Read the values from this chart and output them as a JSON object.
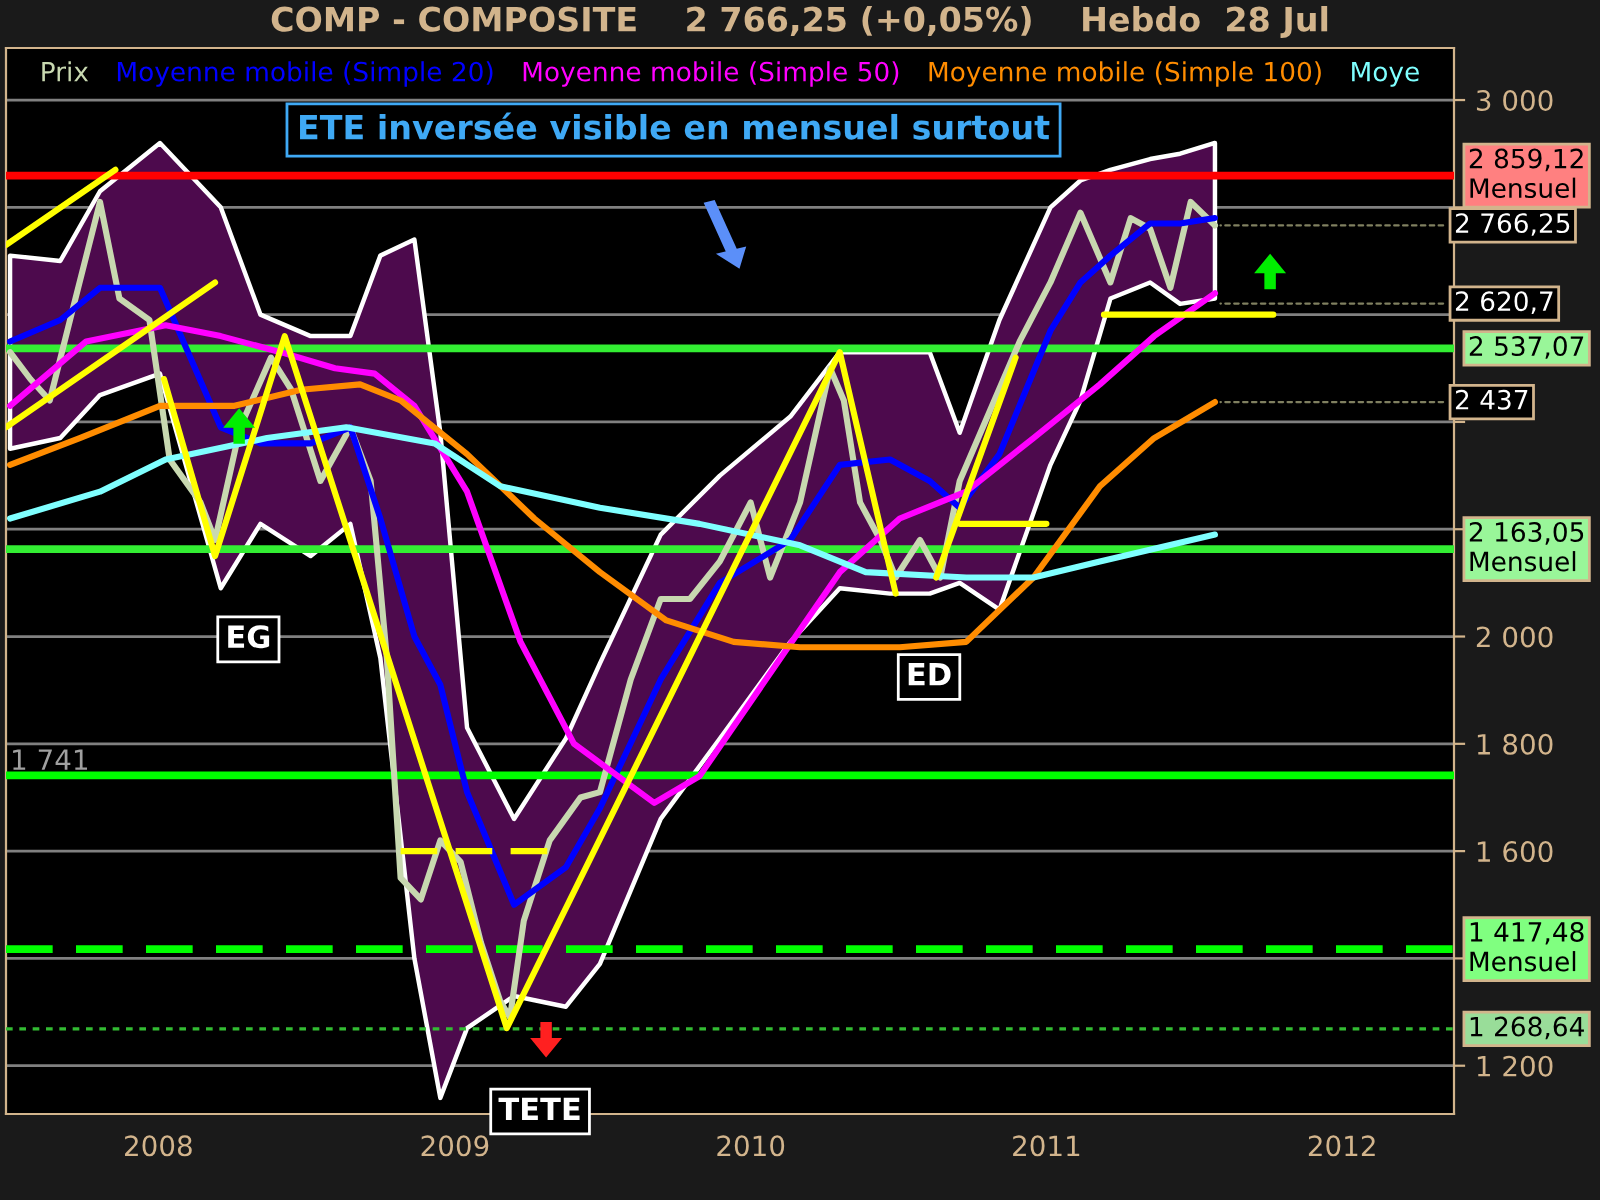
{
  "chart_data": {
    "type": "line",
    "title": "COMP - COMPOSITE    2 766,25 (+0,05%)    Hebdo  28 Jul",
    "xlim": [
      "2007-06-27",
      "2012-05-18"
    ],
    "xticks": [
      "2008",
      "2009",
      "2010",
      "2011",
      "2012"
    ],
    "ylim": [
      1110,
      3097
    ],
    "yticks": [
      {
        "value": 1200,
        "label": "1 200"
      },
      {
        "value": 1400,
        "label": null
      },
      {
        "value": 1600,
        "label": "1 600"
      },
      {
        "value": 1800,
        "label": "1 800"
      },
      {
        "value": 2000,
        "label": "2 000"
      },
      {
        "value": 2200,
        "label": null
      },
      {
        "value": 2400,
        "label": null
      },
      {
        "value": 2600,
        "label": null
      },
      {
        "value": 2800,
        "label": null
      },
      {
        "value": 3000,
        "label": "3 000"
      }
    ],
    "grid": "y",
    "legend": "top",
    "series": [
      {
        "name": "Prix",
        "color": "#c8d8b0",
        "x": [
          "2007-07-02",
          "2007-07-27",
          "2007-08-20",
          "2007-09-14",
          "2007-10-21",
          "2007-11-14",
          "2007-12-21",
          "2008-01-15",
          "2008-02-22",
          "2008-03-11",
          "2008-04-11",
          "2008-05-19",
          "2008-06-13",
          "2008-07-19",
          "2008-08-25",
          "2008-09-19",
          "2008-10-09",
          "2008-10-26",
          "2008-11-20",
          "2008-12-14",
          "2009-01-08",
          "2009-02-02",
          "2009-02-26",
          "2009-03-10",
          "2009-03-27",
          "2009-04-28",
          "2009-06-05",
          "2009-06-29",
          "2009-08-06",
          "2009-09-12",
          "2009-10-18",
          "2009-11-24",
          "2010-01-01",
          "2010-01-25",
          "2010-03-03",
          "2010-04-09",
          "2010-04-26",
          "2010-05-16",
          "2010-06-10",
          "2010-06-29",
          "2010-07-29",
          "2010-08-23",
          "2010-09-16",
          "2010-10-23",
          "2010-11-29",
          "2011-01-06",
          "2011-02-12",
          "2011-03-21",
          "2011-04-15",
          "2011-05-09",
          "2011-06-03",
          "2011-06-28",
          "2011-07-28"
        ],
        "values": [
          2530,
          2480,
          2440,
          2590,
          2810,
          2630,
          2590,
          2330,
          2250,
          2180,
          2390,
          2520,
          2460,
          2290,
          2390,
          2290,
          1960,
          1550,
          1510,
          1620,
          1580,
          1430,
          1320,
          1290,
          1470,
          1620,
          1700,
          1710,
          1920,
          2070,
          2070,
          2140,
          2250,
          2110,
          2250,
          2500,
          2440,
          2250,
          2180,
          2110,
          2180,
          2110,
          2290,
          2420,
          2550,
          2660,
          2790,
          2660,
          2780,
          2760,
          2650,
          2810,
          2766.25
        ]
      },
      {
        "name": "Moyenne mobile (Simple 20)",
        "color": "#0000ff",
        "x": [
          "2007-07-02",
          "2007-09-02",
          "2007-10-21",
          "2008-01-03",
          "2008-03-18",
          "2008-05-06",
          "2008-07-07",
          "2008-08-25",
          "2008-10-01",
          "2008-11-12",
          "2008-12-14",
          "2009-01-16",
          "2009-03-15",
          "2009-05-18",
          "2009-06-29",
          "2009-09-12",
          "2009-11-24",
          "2010-02-19",
          "2010-04-21",
          "2010-06-22",
          "2010-08-10",
          "2010-09-16",
          "2010-11-04",
          "2011-01-06",
          "2011-02-12",
          "2011-03-21",
          "2011-05-09",
          "2011-06-15",
          "2011-07-28"
        ],
        "values": [
          2550,
          2590,
          2650,
          2650,
          2390,
          2360,
          2360,
          2390,
          2220,
          2000,
          1910,
          1710,
          1500,
          1570,
          1680,
          1920,
          2100,
          2180,
          2320,
          2330,
          2290,
          2240,
          2340,
          2570,
          2660,
          2710,
          2770,
          2770,
          2780
        ],
        "upper": [
          2710,
          2700,
          2830,
          2920,
          2800,
          2600,
          2560,
          2560,
          2710,
          2740,
          2380,
          1830,
          1660,
          1810,
          1950,
          2190,
          2300,
          2410,
          2530,
          2530,
          2530,
          2380,
          2590,
          2800,
          2850,
          2870,
          2890,
          2900,
          2920
        ],
        "lower": [
          2350,
          2370,
          2450,
          2490,
          2090,
          2210,
          2150,
          2210,
          1960,
          1400,
          1140,
          1270,
          1330,
          1310,
          1390,
          1660,
          1810,
          1990,
          2090,
          2080,
          2080,
          2100,
          2050,
          2320,
          2440,
          2630,
          2660,
          2620,
          2630
        ]
      },
      {
        "name": "Moyenne mobile (Simple 50)",
        "color": "#ff00ff",
        "x": [
          "2007-07-02",
          "2007-10-04",
          "2008-01-10",
          "2008-03-18",
          "2008-05-31",
          "2008-08-06",
          "2008-09-24",
          "2008-11-12",
          "2009-01-16",
          "2009-03-23",
          "2009-05-28",
          "2009-09-04",
          "2009-10-30",
          "2010-02-07",
          "2010-04-21",
          "2010-07-04",
          "2010-09-24",
          "2010-12-16",
          "2011-03-08",
          "2011-05-14",
          "2011-07-28"
        ],
        "values": [
          2430,
          2550,
          2580,
          2560,
          2530,
          2500,
          2490,
          2430,
          2270,
          1990,
          1800,
          1690,
          1740,
          1960,
          2120,
          2220,
          2270,
          2370,
          2470,
          2560,
          2640
        ]
      },
      {
        "name": "Moyenne mobile (Simple 100)",
        "color": "#ff8c00",
        "x": [
          "2007-07-02",
          "2007-09-26",
          "2008-01-03",
          "2008-04-04",
          "2008-06-25",
          "2008-09-06",
          "2008-10-26",
          "2009-01-16",
          "2009-04-09",
          "2009-06-29",
          "2009-09-19",
          "2009-12-11",
          "2010-03-03",
          "2010-07-04",
          "2010-09-24",
          "2010-12-16",
          "2011-03-08",
          "2011-05-14",
          "2011-07-28"
        ],
        "values": [
          2320,
          2370,
          2430,
          2430,
          2460,
          2470,
          2440,
          2340,
          2220,
          2120,
          2030,
          1990,
          1980,
          1980,
          1990,
          2110,
          2280,
          2370,
          2437
        ]
      },
      {
        "name": "Moye",
        "color": "#7fffff",
        "x": [
          "2007-07-02",
          "2007-10-21",
          "2008-01-10",
          "2008-05-14",
          "2008-08-20",
          "2008-12-07",
          "2009-02-26",
          "2009-06-29",
          "2009-10-30",
          "2010-03-03",
          "2010-05-23",
          "2010-09-24",
          "2010-12-16",
          "2011-03-08",
          "2011-07-28"
        ],
        "values": [
          2220,
          2270,
          2330,
          2370,
          2390,
          2360,
          2280,
          2240,
          2210,
          2170,
          2120,
          2110,
          2110,
          2140,
          2190
        ]
      },
      {
        "color": "#ffff00",
        "x": [
          "2007-06-27",
          "2007-11-09"
        ],
        "values": [
          2730,
          2870
        ]
      },
      {
        "color": "#ffff00",
        "x": [
          "2007-06-27",
          "2008-03-11"
        ],
        "values": [
          2390,
          2660
        ]
      },
      {
        "color": "#ffff00",
        "x": [
          "2008-01-08",
          "2008-03-11",
          "2008-06-05",
          "2009-03-06",
          "2010-04-21",
          "2010-06-29"
        ],
        "values": [
          2480,
          2150,
          2560,
          1270,
          2530,
          2080
        ]
      },
      {
        "color": "#ffff00",
        "x": [
          "2010-08-18",
          "2010-11-24"
        ],
        "values": [
          2110,
          2520
        ]
      },
      {
        "color": "#ffff00",
        "x": [
          "2010-09-16",
          "2011-01-01"
        ],
        "values": [
          2210,
          2210
        ]
      },
      {
        "color": "#ffff00",
        "x": [
          "2011-03-13",
          "2011-10-08"
        ],
        "values": [
          2600,
          2600
        ]
      },
      {
        "color": "#ffff00",
        "line_style": "dashed",
        "x": [
          "2008-10-26",
          "2009-05-04"
        ],
        "values": [
          1600,
          1600
        ]
      }
    ],
    "ref_lines": [
      {
        "axis": "y",
        "value": 2859.12,
        "label": "2 859,12\nMensuel",
        "color": "#ff0000"
      },
      {
        "axis": "y",
        "value": 2537.07,
        "label": "2 537,07",
        "color": "#33ee33"
      },
      {
        "axis": "y",
        "value": 2163.05,
        "label": "2 163,05\nMensuel",
        "color": "#33ee33"
      },
      {
        "axis": "y",
        "value": 1741,
        "color": "#00ff00"
      },
      {
        "axis": "y",
        "value": 1417.48,
        "label": "1 417,48\nMensuel",
        "color": "#00ff00",
        "line_style": "dashed"
      },
      {
        "axis": "y",
        "value": 1268.64,
        "label": "1 268,64",
        "color": "#33bb33",
        "line_style": "dotted"
      }
    ],
    "annotations": [
      "ETE inversée visible en mensuel surtout",
      {
        "text": "EG",
        "x": "2008-03-11",
        "y": 2150
      },
      {
        "text": "TETE",
        "x": "2009-03-06",
        "y": 1270
      },
      {
        "text": "ED",
        "x": "2010-06-29",
        "y": 2080
      },
      {
        "text": "1 741",
        "x": "2007-07-02",
        "y": 1741
      },
      {
        "text": "2 766,25",
        "x": "2011-07-28",
        "y": 2766.25
      },
      {
        "text": "2 620,7",
        "x": "2011-07-28",
        "y": 2620.7
      },
      {
        "text": "2 437",
        "x": "2011-07-28",
        "y": 2437
      }
    ]
  }
}
